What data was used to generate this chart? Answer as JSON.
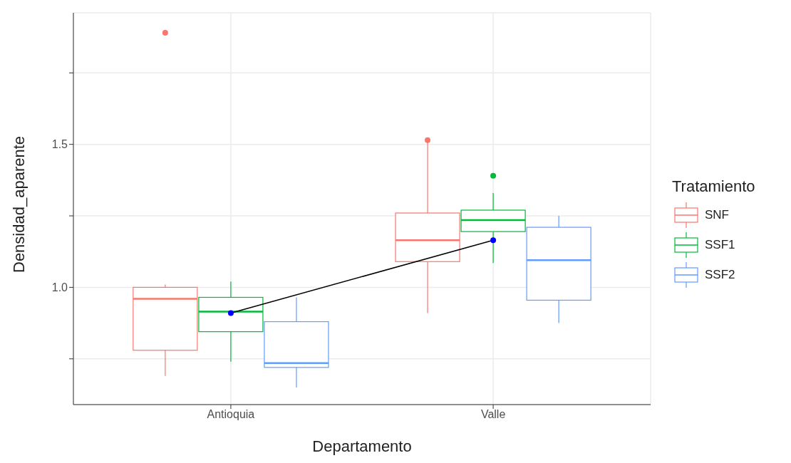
{
  "chart_data": {
    "type": "box",
    "xlabel": "Departamento",
    "ylabel": "Densidad_aparente",
    "legend_title": "Tratamiento",
    "categories": [
      "Antioquia",
      "Valle"
    ],
    "series": [
      {
        "name": "SNF",
        "color": "#f8766d",
        "boxes": [
          {
            "low": 0.69,
            "q1": 0.78,
            "median": 0.96,
            "q3": 1.0,
            "high": 1.01,
            "outliers": [
              1.89
            ]
          },
          {
            "low": 0.91,
            "q1": 1.09,
            "median": 1.165,
            "q3": 1.26,
            "high": 1.51,
            "outliers": [
              1.515
            ]
          }
        ]
      },
      {
        "name": "SSF1",
        "color": "#00ba38",
        "boxes": [
          {
            "low": 0.74,
            "q1": 0.845,
            "median": 0.915,
            "q3": 0.965,
            "high": 1.02
          },
          {
            "low": 1.085,
            "q1": 1.195,
            "median": 1.235,
            "q3": 1.27,
            "high": 1.33,
            "outliers": [
              1.39
            ]
          }
        ]
      },
      {
        "name": "SSF2",
        "color": "#619cff",
        "boxes": [
          {
            "low": 0.65,
            "q1": 0.72,
            "median": 0.735,
            "q3": 0.88,
            "high": 0.965
          },
          {
            "low": 0.875,
            "q1": 0.955,
            "median": 1.095,
            "q3": 1.21,
            "high": 1.25
          }
        ]
      },
      {
        "type": "line",
        "color": "#000000",
        "x": [
          "Antioquia",
          "Valle"
        ],
        "values": [
          0.91,
          1.165
        ]
      },
      {
        "type": "scatter",
        "color": "#0000ff",
        "x": [
          "Antioquia",
          "Valle"
        ],
        "values": [
          0.91,
          1.165
        ]
      }
    ],
    "ylim": [
      0.59,
      1.96
    ],
    "yticks": [
      {
        "value": 0.75,
        "label": null
      },
      {
        "value": 1,
        "label": "1.0"
      },
      {
        "value": 1.25,
        "label": null
      },
      {
        "value": 1.5,
        "label": "1.5"
      },
      {
        "value": 1.75,
        "label": null
      }
    ],
    "grid": true,
    "legend": "right"
  }
}
